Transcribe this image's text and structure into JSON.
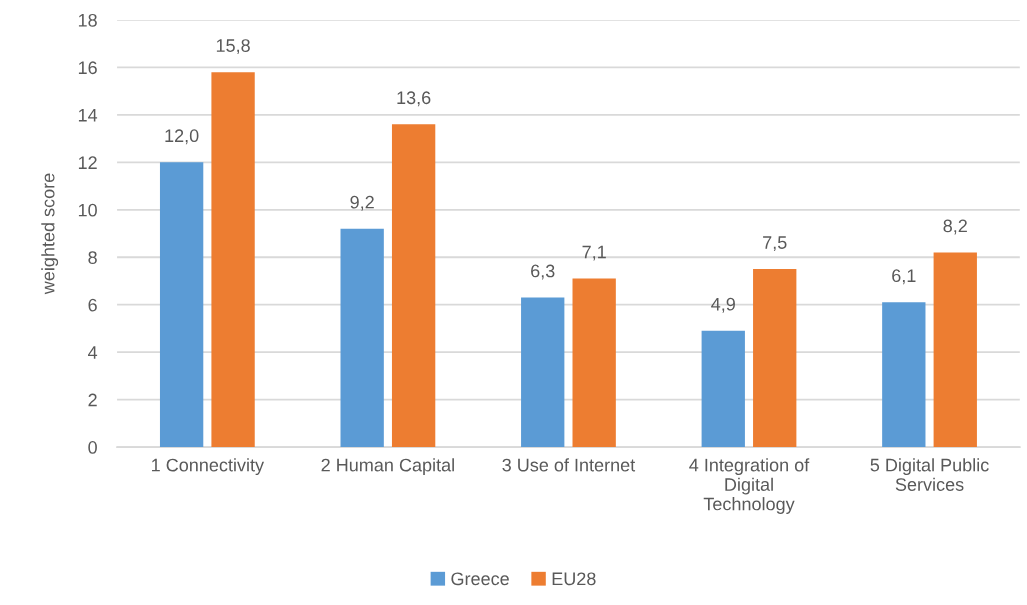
{
  "chart_data": {
    "type": "bar",
    "ylabel": "weighted score",
    "categories": [
      "1 Connectivity",
      "2 Human Capital",
      "3 Use of Internet",
      "4 Integration of\nDigital\nTechnology",
      "5 Digital Public\nServices"
    ],
    "series": [
      {
        "name": "Greece",
        "color": "#5b9bd5",
        "values": [
          12.0,
          9.2,
          6.3,
          4.9,
          6.1
        ],
        "value_labels": [
          "12,0",
          "9,2",
          "6,3",
          "4,9",
          "6,1"
        ]
      },
      {
        "name": "EU28",
        "color": "#ed7d31",
        "values": [
          15.8,
          13.6,
          7.1,
          7.5,
          8.2
        ],
        "value_labels": [
          "15,8",
          "13,6",
          "7,1",
          "7,5",
          "8,2"
        ]
      }
    ],
    "ylim": [
      0,
      18
    ],
    "yticks": [
      0,
      2,
      4,
      6,
      8,
      10,
      12,
      14,
      16,
      18
    ],
    "grid": "y",
    "legend": "bottom"
  }
}
